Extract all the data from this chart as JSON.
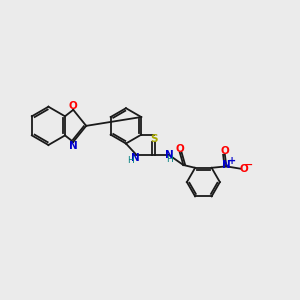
{
  "background_color": "#ebebeb",
  "bond_color": "#1a1a1a",
  "atom_colors": {
    "O": "#ff0000",
    "N": "#0000cc",
    "S": "#aaaa00",
    "H": "#008080",
    "C": "#1a1a1a"
  },
  "figsize": [
    3.0,
    3.0
  ],
  "dpi": 100,
  "lw": 1.3
}
